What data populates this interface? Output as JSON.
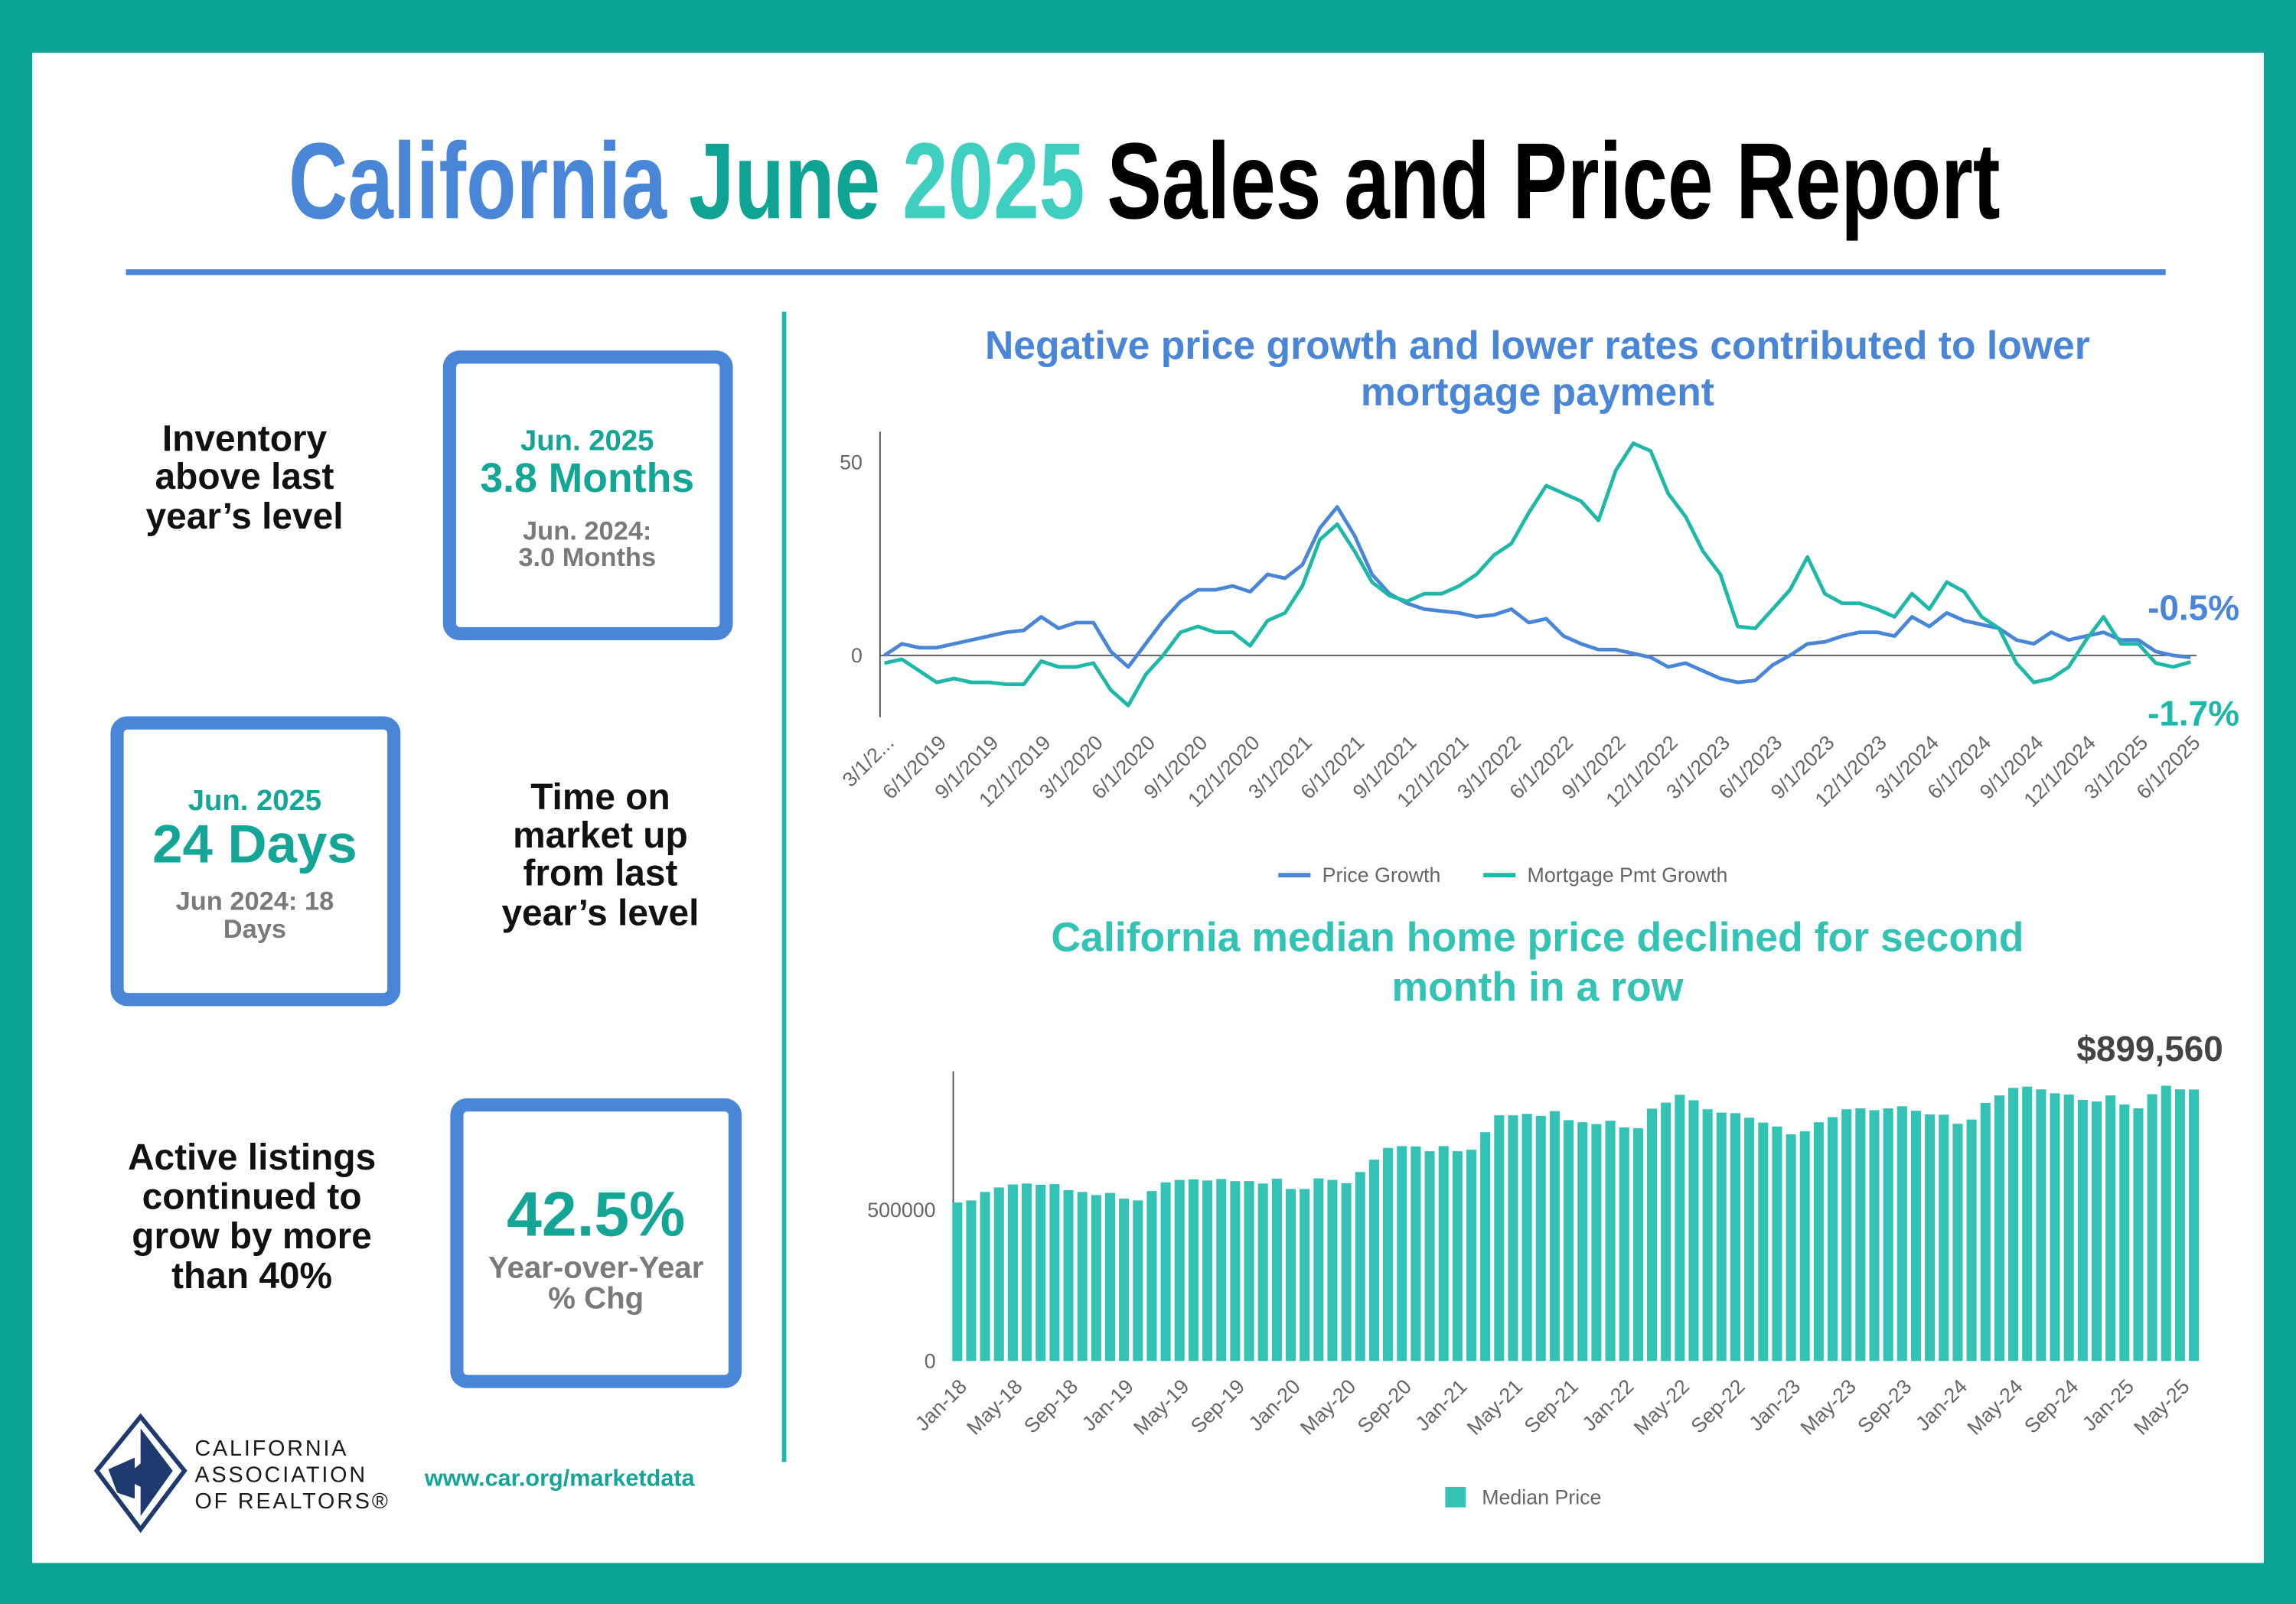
{
  "header": {
    "title_parts": [
      "California",
      "June",
      "2025",
      "Sales and Price Report"
    ]
  },
  "stats": [
    {
      "description": [
        "Inventory",
        "above last",
        "year’s level"
      ],
      "period": "Jun. 2025",
      "value": "3.8 Months",
      "comparison": [
        "Jun. 2024:",
        "3.0 Months"
      ]
    },
    {
      "description": [
        "Time on",
        "market up",
        "from last",
        "year’s level"
      ],
      "period": "Jun. 2025",
      "value": "24 Days",
      "comparison": [
        "Jun 2024: 18",
        "Days"
      ]
    },
    {
      "description": [
        "Active listings",
        "continued to",
        "grow by more",
        "than 40%"
      ],
      "value": "42.5%",
      "comparison": [
        "Year-over-Year",
        "% Chg"
      ]
    }
  ],
  "chart_data": [
    {
      "type": "line",
      "title": "Negative price growth and lower rates contributed to lower mortgage payment",
      "categories": [
        "3/1/2...",
        null,
        null,
        "6/1/2019",
        null,
        null,
        "9/1/2019",
        null,
        null,
        "12/1/2019",
        null,
        null,
        "3/1/2020",
        null,
        null,
        "6/1/2020",
        null,
        null,
        "9/1/2020",
        null,
        null,
        "12/1/2020",
        null,
        null,
        "3/1/2021",
        null,
        null,
        "6/1/2021",
        null,
        null,
        "9/1/2021",
        null,
        null,
        "12/1/2021",
        null,
        null,
        "3/1/2022",
        null,
        null,
        "6/1/2022",
        null,
        null,
        "9/1/2022",
        null,
        null,
        "12/1/2022",
        null,
        null,
        "3/1/2023",
        null,
        null,
        "6/1/2023",
        null,
        null,
        "9/1/2023",
        null,
        null,
        "12/1/2023",
        null,
        null,
        "3/1/2024",
        null,
        null,
        "6/1/2024",
        null,
        null,
        "9/1/2024",
        null,
        null,
        "12/1/2024",
        null,
        null,
        "3/1/2025",
        null,
        null,
        "6/1/2025"
      ],
      "series": [
        {
          "name": "Price Growth",
          "color": "#4a86d8",
          "values": [
            0,
            3,
            2,
            2,
            3,
            4,
            5,
            6,
            6.5,
            10,
            7,
            8.5,
            8.5,
            1,
            -3,
            3,
            9,
            14,
            17,
            17,
            18,
            16.5,
            21,
            20,
            23.5,
            33,
            38.5,
            31,
            21,
            16,
            13.5,
            12,
            11.5,
            11,
            10,
            10.5,
            12,
            8.5,
            9.5,
            5,
            3,
            1.5,
            1.5,
            0.5,
            -0.5,
            -3,
            -2,
            -4,
            -6,
            -7,
            -6.5,
            -2.5,
            0,
            3,
            3.5,
            5,
            6,
            6,
            5,
            10,
            7.5,
            11,
            9,
            8,
            7,
            4,
            3,
            6,
            4,
            5,
            6,
            4,
            4,
            1,
            0,
            -0.5
          ],
          "value_labels": [
            null,
            null,
            null,
            null,
            null,
            null,
            null,
            null,
            null,
            null,
            null,
            null,
            null,
            null,
            null,
            null,
            null,
            null,
            null,
            null,
            null,
            null,
            null,
            null,
            null,
            null,
            null,
            null,
            null,
            null,
            null,
            null,
            null,
            null,
            null,
            null,
            null,
            null,
            null,
            null,
            null,
            null,
            null,
            null,
            null,
            null,
            null,
            null,
            null,
            null,
            null,
            null,
            null,
            null,
            null,
            null,
            null,
            null,
            null,
            null,
            null,
            null,
            null,
            null,
            null,
            null,
            null,
            null,
            null,
            null,
            null,
            null,
            null,
            null,
            null,
            "-0.5%"
          ]
        },
        {
          "name": "Mortgage Pmt Growth",
          "color": "#1db8a8",
          "values": [
            -2,
            -1,
            -4,
            -7,
            -6,
            -7,
            -7,
            -7.5,
            -7.5,
            -1.5,
            -3,
            -3,
            -2,
            -9,
            -13,
            -5,
            0,
            6,
            7.5,
            6,
            6,
            2.5,
            9,
            11,
            18,
            30,
            34,
            27,
            19,
            15.5,
            14,
            16,
            16,
            18,
            21,
            26,
            29,
            37,
            44,
            42,
            40,
            35,
            48,
            55,
            53,
            42,
            36,
            27,
            21,
            7.5,
            7,
            12,
            17,
            25.5,
            16,
            13.5,
            13.5,
            12,
            10,
            16,
            12,
            19,
            16.5,
            10,
            7,
            -2,
            -7,
            -6,
            -3,
            4,
            10,
            3,
            3,
            -2,
            -3,
            -1.7
          ],
          "value_labels": [
            null,
            null,
            null,
            null,
            null,
            null,
            null,
            null,
            null,
            null,
            null,
            null,
            null,
            null,
            null,
            null,
            null,
            null,
            null,
            null,
            null,
            null,
            null,
            null,
            null,
            null,
            null,
            null,
            null,
            null,
            null,
            null,
            null,
            null,
            null,
            null,
            null,
            null,
            null,
            null,
            null,
            null,
            null,
            null,
            null,
            null,
            null,
            null,
            null,
            null,
            null,
            null,
            null,
            null,
            null,
            null,
            null,
            null,
            null,
            null,
            null,
            null,
            null,
            null,
            null,
            null,
            null,
            null,
            null,
            null,
            null,
            null,
            null,
            null,
            null,
            "-1.7%"
          ]
        }
      ],
      "ylim": [
        -16,
        58
      ],
      "yticks": [
        0,
        50
      ],
      "grid": false,
      "legend": "bottom"
    },
    {
      "type": "bar",
      "title": "California median home price declined for second month in a row",
      "categories": [
        "Jan-18",
        null,
        null,
        null,
        "May-18",
        null,
        null,
        null,
        "Sep-18",
        null,
        null,
        null,
        "Jan-19",
        null,
        null,
        null,
        "May-19",
        null,
        null,
        null,
        "Sep-19",
        null,
        null,
        null,
        "Jan-20",
        null,
        null,
        null,
        "May-20",
        null,
        null,
        null,
        "Sep-20",
        null,
        null,
        null,
        "Jan-21",
        null,
        null,
        null,
        "May-21",
        null,
        null,
        null,
        "Sep-21",
        null,
        null,
        null,
        "Jan-22",
        null,
        null,
        null,
        "May-22",
        null,
        null,
        null,
        "Sep-22",
        null,
        null,
        null,
        "Jan-23",
        null,
        null,
        null,
        "May-23",
        null,
        null,
        null,
        "Sep-23",
        null,
        null,
        null,
        "Jan-24",
        null,
        null,
        null,
        "May-24",
        null,
        null,
        null,
        "Sep-24",
        null,
        null,
        null,
        "Jan-25",
        null,
        null,
        null,
        "May-25",
        null
      ],
      "series": [
        {
          "name": "Median Price",
          "color": "#33c3b5",
          "values": [
            525000,
            532000,
            560000,
            575000,
            585000,
            588000,
            584000,
            586000,
            566000,
            560000,
            550000,
            557000,
            538000,
            532000,
            563000,
            592000,
            600000,
            602000,
            598000,
            603000,
            596000,
            596000,
            588000,
            604000,
            570000,
            570000,
            605000,
            600000,
            589000,
            626000,
            667000,
            706000,
            712000,
            711000,
            695000,
            712000,
            695000,
            700000,
            758000,
            814000,
            814000,
            819000,
            812000,
            828000,
            798000,
            791000,
            785000,
            796000,
            774000,
            771000,
            836000,
            856000,
            882000,
            864000,
            834000,
            823000,
            821000,
            806000,
            790000,
            777000,
            751000,
            761000,
            791000,
            808000,
            834000,
            837000,
            831000,
            837000,
            844000,
            829000,
            817000,
            816000,
            786000,
            800000,
            855000,
            880000,
            905000,
            909000,
            900000,
            887000,
            883000,
            865000,
            860000,
            880000,
            850000,
            837000,
            884000,
            912000,
            900000,
            899560
          ],
          "value_labels": [
            null,
            null,
            null,
            null,
            null,
            null,
            null,
            null,
            null,
            null,
            null,
            null,
            null,
            null,
            null,
            null,
            null,
            null,
            null,
            null,
            null,
            null,
            null,
            null,
            null,
            null,
            null,
            null,
            null,
            null,
            null,
            null,
            null,
            null,
            null,
            null,
            null,
            null,
            null,
            null,
            null,
            null,
            null,
            null,
            null,
            null,
            null,
            null,
            null,
            null,
            null,
            null,
            null,
            null,
            null,
            null,
            null,
            null,
            null,
            null,
            null,
            null,
            null,
            null,
            null,
            null,
            null,
            null,
            null,
            null,
            null,
            null,
            null,
            null,
            null,
            null,
            null,
            null,
            null,
            null,
            null,
            null,
            null,
            null,
            null,
            null,
            null,
            null,
            null,
            "$899,560"
          ]
        }
      ],
      "ylim": [
        0,
        960000
      ],
      "yticks": [
        0,
        500000
      ],
      "grid": false,
      "legend": "bottom"
    }
  ],
  "footer": {
    "logo_text": [
      "CALIFORNIA",
      "ASSOCIATION",
      "OF REALTORS®"
    ],
    "url": "www.car.org/marketdata"
  }
}
